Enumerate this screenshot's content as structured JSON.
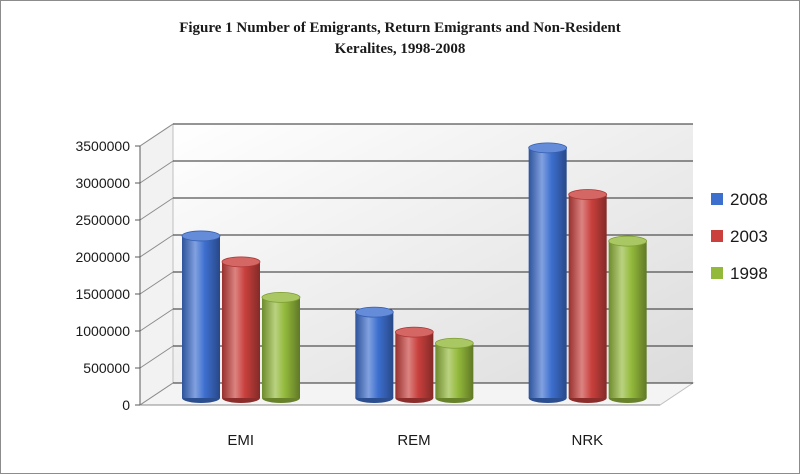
{
  "title_line1": "Figure 1 Number  of Emigrants, Return Emigrants and Non-Resident",
  "title_line2": "Keralites, 1998-2008",
  "chart_data": {
    "type": "bar",
    "title": "Figure 1 Number  of Emigrants, Return Emigrants and Non-Resident Keralites, 1998-2008",
    "categories": [
      "EMI",
      "REM",
      "NRK"
    ],
    "series": [
      {
        "name": "2008",
        "color": "#3d6fcf",
        "values": [
          2190000,
          1160000,
          3380000
        ]
      },
      {
        "name": "2003",
        "color": "#c9403d",
        "values": [
          1840000,
          890000,
          2750000
        ]
      },
      {
        "name": "1998",
        "color": "#93b93b",
        "values": [
          1360000,
          740000,
          2120000
        ]
      }
    ],
    "y_ticks": [
      "0",
      "500000",
      "1000000",
      "1500000",
      "2000000",
      "2500000",
      "3000000",
      "3500000"
    ],
    "ylim": [
      0,
      3500000
    ],
    "grid": true,
    "legend_position": "right"
  }
}
